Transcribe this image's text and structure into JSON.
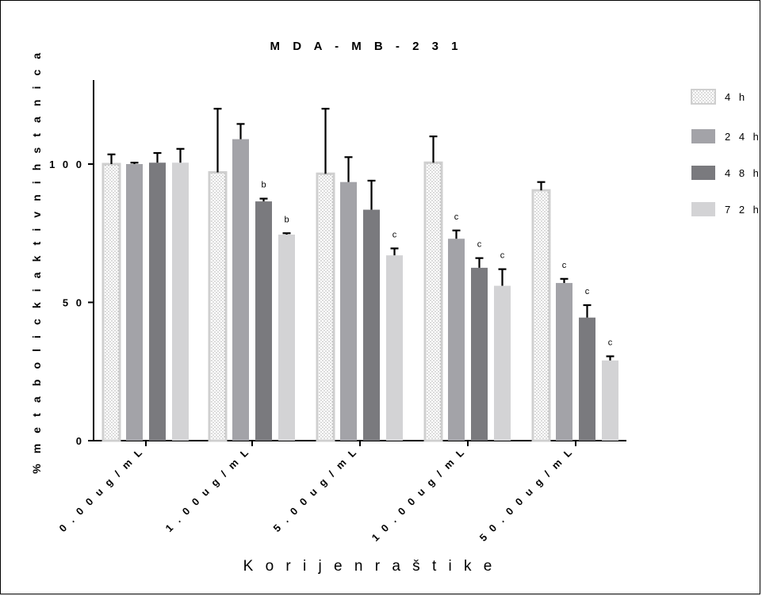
{
  "chart_data": {
    "type": "bar",
    "title": "M D A - M B - 2 3 1",
    "xlabel": "K o r i j e n  r a š t i k e",
    "ylabel": "%  m e t a b o l i c k i  a k t i v n i h  s t a n i c a",
    "ylim": [
      0,
      130
    ],
    "yticks": [
      {
        "value": 0,
        "label": "0"
      },
      {
        "value": 50,
        "label": "5 0"
      },
      {
        "value": 100,
        "label": "1 0 0"
      }
    ],
    "categories": [
      "0 . 0 0 u g / m L",
      "1 . 0 0 u g / m L",
      "5 . 0 0 u g / m L",
      "1 0 . 0 0 u g / m L",
      "5 0 . 0 0 u g / m L"
    ],
    "series": [
      {
        "name": "4 h",
        "color": "#ffffff",
        "pattern": "dots",
        "values": [
          100,
          97,
          96.5,
          100.5,
          90.5
        ],
        "errors": [
          3.5,
          23,
          23.5,
          9.5,
          3
        ],
        "annotations": [
          "",
          "",
          "",
          "",
          ""
        ]
      },
      {
        "name": "2 4 h",
        "color": "#a3a3a8",
        "pattern": "solid",
        "values": [
          100,
          109,
          93.5,
          73,
          57
        ],
        "errors": [
          0.5,
          5.5,
          9,
          3,
          1.5
        ],
        "annotations": [
          "",
          "",
          "",
          "c",
          "c"
        ]
      },
      {
        "name": "4 8 h",
        "color": "#7a7a7e",
        "pattern": "solid",
        "values": [
          100.5,
          86.5,
          83.5,
          62.5,
          44.5
        ],
        "errors": [
          3.5,
          1,
          10.5,
          3.5,
          4.5
        ],
        "annotations": [
          "",
          "b",
          "",
          "c",
          "c"
        ]
      },
      {
        "name": "7 2 h",
        "color": "#d3d3d5",
        "pattern": "solid",
        "values": [
          100.5,
          74.5,
          67,
          56,
          29
        ],
        "errors": [
          5,
          0.5,
          2.5,
          6,
          1.5
        ],
        "annotations": [
          "",
          "b",
          "c",
          "c",
          "c"
        ]
      }
    ],
    "legend_position": "right",
    "grid": false
  }
}
